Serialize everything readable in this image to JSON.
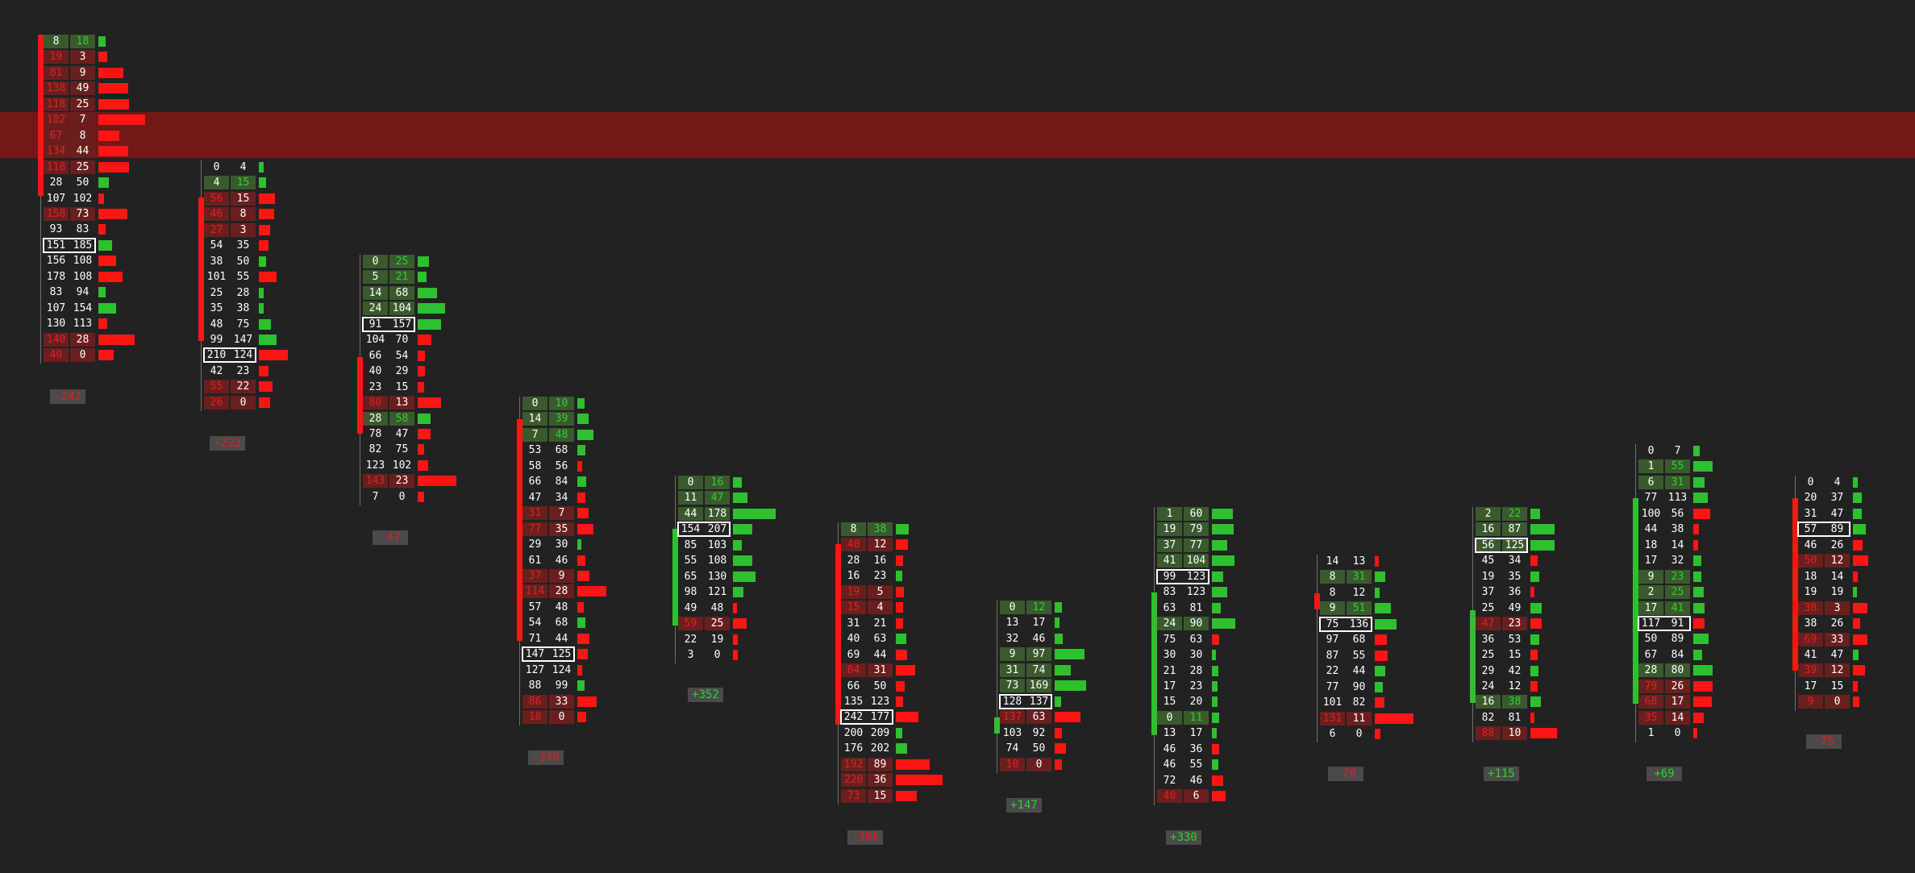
{
  "colors": {
    "background": "#222222",
    "highlight_band": "#731717",
    "bull": "#2fc02f",
    "bear": "#ff1414",
    "ask_dominant_cell": "#3a5a2e",
    "bid_dominant_cell": "#6a1f1f",
    "neutral_text": "#ffffff",
    "bull_text": "#2fd02f",
    "bear_text": "#e02020"
  },
  "chart_data": {
    "type": "table",
    "description_of_cells": "bid x ask volume per price level (footprint)",
    "bars": [
      {
        "delta": "-242",
        "direction": "down",
        "levels": [
          [
            8,
            18
          ],
          [
            19,
            3
          ],
          [
            81,
            9
          ],
          [
            138,
            49
          ],
          [
            118,
            25
          ],
          [
            182,
            7
          ],
          [
            67,
            8
          ],
          [
            134,
            44
          ],
          [
            118,
            25
          ],
          [
            28,
            50
          ],
          [
            107,
            102
          ],
          [
            158,
            73
          ],
          [
            93,
            83
          ],
          [
            151,
            185
          ],
          [
            156,
            108
          ],
          [
            178,
            108
          ],
          [
            83,
            94
          ],
          [
            107,
            154
          ],
          [
            130,
            113
          ],
          [
            140,
            28
          ],
          [
            40,
            0
          ]
        ]
      },
      {
        "delta": "-223",
        "direction": "down",
        "levels": [
          [
            0,
            4
          ],
          [
            4,
            15
          ],
          [
            56,
            15
          ],
          [
            46,
            8
          ],
          [
            27,
            3
          ],
          [
            54,
            35
          ],
          [
            38,
            50
          ],
          [
            101,
            55
          ],
          [
            25,
            28
          ],
          [
            35,
            38
          ],
          [
            48,
            75
          ],
          [
            99,
            147
          ],
          [
            210,
            124
          ],
          [
            42,
            23
          ],
          [
            55,
            22
          ],
          [
            26,
            0
          ]
        ]
      },
      {
        "delta": "-47",
        "direction": "down",
        "levels": [
          [
            0,
            25
          ],
          [
            5,
            21
          ],
          [
            14,
            68
          ],
          [
            24,
            104
          ],
          [
            91,
            157
          ],
          [
            104,
            70
          ],
          [
            66,
            54
          ],
          [
            40,
            29
          ],
          [
            23,
            15
          ],
          [
            80,
            13
          ],
          [
            28,
            58
          ],
          [
            78,
            47
          ],
          [
            82,
            75
          ],
          [
            123,
            102
          ],
          [
            143,
            23
          ],
          [
            7,
            0
          ]
        ]
      },
      {
        "delta": "-240",
        "direction": "down",
        "levels": [
          [
            0,
            10
          ],
          [
            14,
            39
          ],
          [
            7,
            48
          ],
          [
            53,
            68
          ],
          [
            58,
            56
          ],
          [
            66,
            84
          ],
          [
            47,
            34
          ],
          [
            31,
            7
          ],
          [
            77,
            35
          ],
          [
            29,
            30
          ],
          [
            61,
            46
          ],
          [
            37,
            9
          ],
          [
            114,
            28
          ],
          [
            57,
            48
          ],
          [
            54,
            68
          ],
          [
            71,
            44
          ],
          [
            147,
            125
          ],
          [
            127,
            124
          ],
          [
            88,
            99
          ],
          [
            86,
            33
          ],
          [
            18,
            0
          ]
        ]
      },
      {
        "delta": "+352",
        "direction": "up",
        "levels": [
          [
            0,
            16
          ],
          [
            11,
            47
          ],
          [
            44,
            178
          ],
          [
            154,
            207
          ],
          [
            85,
            103
          ],
          [
            55,
            108
          ],
          [
            65,
            130
          ],
          [
            98,
            121
          ],
          [
            49,
            48
          ],
          [
            59,
            25
          ],
          [
            22,
            19
          ],
          [
            3,
            0
          ]
        ]
      },
      {
        "delta": "-306",
        "direction": "down",
        "levels": [
          [
            8,
            38
          ],
          [
            40,
            12
          ],
          [
            28,
            16
          ],
          [
            16,
            23
          ],
          [
            19,
            5
          ],
          [
            15,
            4
          ],
          [
            31,
            21
          ],
          [
            40,
            63
          ],
          [
            69,
            44
          ],
          [
            84,
            31
          ],
          [
            66,
            50
          ],
          [
            135,
            123
          ],
          [
            242,
            177
          ],
          [
            200,
            209
          ],
          [
            176,
            202
          ],
          [
            192,
            89
          ],
          [
            220,
            36
          ],
          [
            73,
            15
          ]
        ]
      },
      {
        "delta": "+147",
        "direction": "up",
        "levels": [
          [
            0,
            12
          ],
          [
            13,
            17
          ],
          [
            32,
            46
          ],
          [
            9,
            97
          ],
          [
            31,
            74
          ],
          [
            73,
            169
          ],
          [
            128,
            137
          ],
          [
            137,
            63
          ],
          [
            103,
            92
          ],
          [
            74,
            50
          ],
          [
            10,
            0
          ]
        ]
      },
      {
        "delta": "+330",
        "direction": "up",
        "levels": [
          [
            1,
            60
          ],
          [
            19,
            79
          ],
          [
            37,
            77
          ],
          [
            41,
            104
          ],
          [
            99,
            123
          ],
          [
            83,
            123
          ],
          [
            63,
            81
          ],
          [
            24,
            90
          ],
          [
            75,
            63
          ],
          [
            30,
            30
          ],
          [
            21,
            28
          ],
          [
            17,
            23
          ],
          [
            15,
            20
          ],
          [
            0,
            11
          ],
          [
            13,
            17
          ],
          [
            46,
            36
          ],
          [
            46,
            55
          ],
          [
            72,
            46
          ],
          [
            40,
            6
          ]
        ]
      },
      {
        "delta": "-70",
        "direction": "down",
        "levels": [
          [
            14,
            13
          ],
          [
            8,
            31
          ],
          [
            8,
            12
          ],
          [
            9,
            51
          ],
          [
            75,
            136
          ],
          [
            97,
            68
          ],
          [
            87,
            55
          ],
          [
            22,
            44
          ],
          [
            77,
            90
          ],
          [
            101,
            82
          ],
          [
            131,
            11
          ],
          [
            6,
            0
          ]
        ]
      },
      {
        "delta": "+115",
        "direction": "up",
        "levels": [
          [
            2,
            22
          ],
          [
            16,
            87
          ],
          [
            56,
            125
          ],
          [
            45,
            34
          ],
          [
            19,
            35
          ],
          [
            37,
            36
          ],
          [
            25,
            49
          ],
          [
            47,
            23
          ],
          [
            36,
            53
          ],
          [
            25,
            15
          ],
          [
            29,
            42
          ],
          [
            24,
            12
          ],
          [
            16,
            38
          ],
          [
            82,
            81
          ],
          [
            88,
            10
          ]
        ]
      },
      {
        "delta": "+69",
        "direction": "up",
        "levels": [
          [
            0,
            7
          ],
          [
            1,
            55
          ],
          [
            6,
            31
          ],
          [
            77,
            113
          ],
          [
            100,
            56
          ],
          [
            44,
            38
          ],
          [
            18,
            14
          ],
          [
            17,
            32
          ],
          [
            9,
            23
          ],
          [
            2,
            25
          ],
          [
            17,
            41
          ],
          [
            117,
            91
          ],
          [
            50,
            89
          ],
          [
            67,
            84
          ],
          [
            28,
            80
          ],
          [
            79,
            26
          ],
          [
            68,
            17
          ],
          [
            35,
            14
          ],
          [
            1,
            0
          ]
        ]
      },
      {
        "delta": "-75",
        "direction": "down",
        "levels": [
          [
            0,
            4
          ],
          [
            20,
            37
          ],
          [
            31,
            47
          ],
          [
            57,
            89
          ],
          [
            46,
            26
          ],
          [
            50,
            12
          ],
          [
            18,
            14
          ],
          [
            19,
            19
          ],
          [
            38,
            3
          ],
          [
            38,
            26
          ],
          [
            69,
            33
          ],
          [
            41,
            47
          ],
          [
            39,
            12
          ],
          [
            17,
            15
          ],
          [
            9,
            0
          ]
        ]
      }
    ]
  }
}
